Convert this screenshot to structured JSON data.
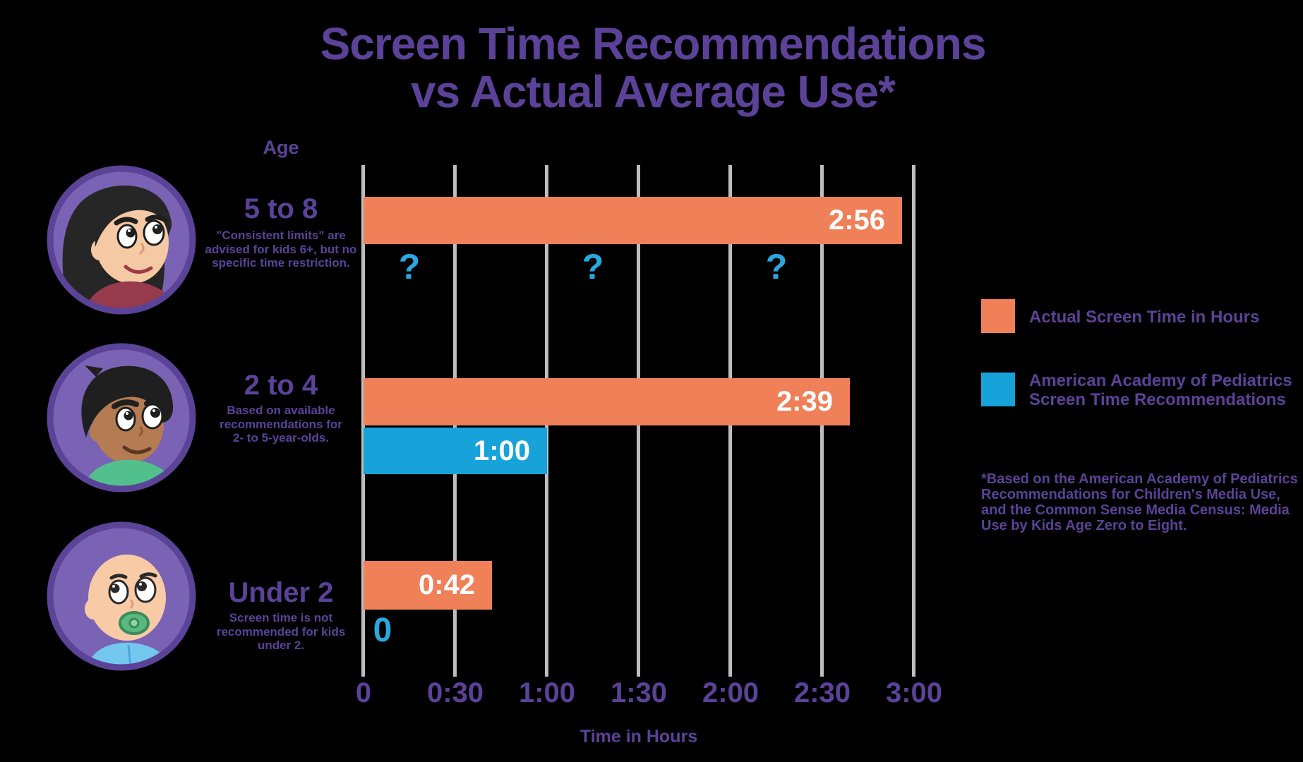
{
  "title": {
    "line1": "Screen Time Recommendations",
    "line2": "vs Actual Average Use*"
  },
  "age_column_label": "Age",
  "rows": [
    {
      "age": "5 to 8",
      "note": "\"Consistent limits\" are\nadvised for kids 6+, but no\nspecific time restriction."
    },
    {
      "age": "2 to 4",
      "note": "Based on available\nrecommendations for\n2- to 5-year-olds."
    },
    {
      "age": "Under 2",
      "note": "Screen time is not\nrecommended for kids\nunder 2."
    }
  ],
  "legend": {
    "actual": "Actual Screen Time in Hours",
    "recommended": "American Academy of Pediatrics\nScreen Time Recommendations"
  },
  "footnote": "*Based on the American Academy of Pediatrics\nRecommendations for Children's Media Use,\nand the Common Sense Media Census: Media\nUse by Kids Age Zero to Eight.",
  "colors": {
    "background": "#000000",
    "purple_text": "#5b4298",
    "orange_bar": "#f08058",
    "blue_bar": "#17a2d9",
    "blue_mark": "#29a8e0",
    "gridline": "#bdbdbd",
    "bar_label": "#ffffff",
    "avatar_fill": "#7a63b5",
    "avatar_border": "#5b4397"
  },
  "chart_data": {
    "type": "bar",
    "orientation": "horizontal",
    "categories": [
      "5 to 8",
      "2 to 4",
      "Under 2"
    ],
    "series": [
      {
        "name": "Actual Screen Time in Hours",
        "color": "#f08058",
        "values_hours": [
          2.933,
          2.65,
          0.7
        ],
        "labels": [
          "2:56",
          "2:39",
          "0:42"
        ]
      },
      {
        "name": "American Academy of Pediatrics Screen Time Recommendations",
        "color": "#17a2d9",
        "values_hours": [
          null,
          1.0,
          0
        ],
        "labels": [
          "?",
          "1:00",
          "0"
        ]
      }
    ],
    "x_ticks": [
      "0",
      "0:30",
      "1:00",
      "1:30",
      "2:00",
      "2:30",
      "3:00"
    ],
    "xlim_hours": [
      0,
      3
    ],
    "xlabel": "Time in Hours",
    "grid": "vertical",
    "notes": "No AAP recommendation exists for ages 5 to 8; shown as three question marks. Recommendation for Under 2 is zero hours."
  }
}
